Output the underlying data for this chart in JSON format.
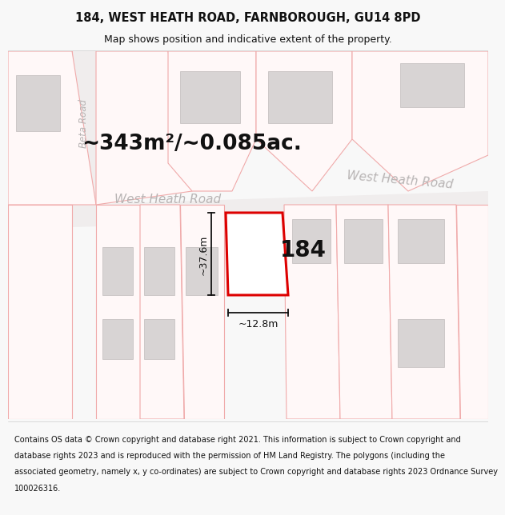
{
  "title": "184, WEST HEATH ROAD, FARNBOROUGH, GU14 8PD",
  "subtitle": "Map shows position and indicative extent of the property.",
  "footer_lines": [
    "Contains OS data © Crown copyright and database right 2021. This information is subject to Crown copyright and",
    "database rights 2023 and is reproduced with the permission of HM Land Registry. The polygons (including the",
    "associated geometry, namely x, y co-ordinates) are subject to Crown copyright and database rights 2023 Ordnance Survey",
    "100026316."
  ],
  "area_text": "~343m²/~0.085ac.",
  "road_name_left": "West Heath Road",
  "road_name_right": "West Heath Road",
  "side_road": "Beta Road",
  "number_label": "184",
  "dim_width": "~12.8m",
  "dim_height": "~37.6m",
  "bg_color": "#f8f8f8",
  "map_bg": "#ffffff",
  "road_fill": "#f0eded",
  "plot_edge_light": "#f0aaaa",
  "plot_fill_light": "#fff8f8",
  "featured_edge": "#dd0000",
  "featured_fill": "#ffffff",
  "building_fill": "#d8d4d4",
  "building_edge": "#c0bcbc",
  "text_color": "#111111",
  "road_text_color": "#b8b4b4",
  "dim_color": "#111111",
  "title_fontsize": 10.5,
  "subtitle_fontsize": 9,
  "footer_fontsize": 7.0,
  "area_fontsize": 19,
  "road_fontsize": 11,
  "number_fontsize": 20,
  "dim_fontsize": 9
}
